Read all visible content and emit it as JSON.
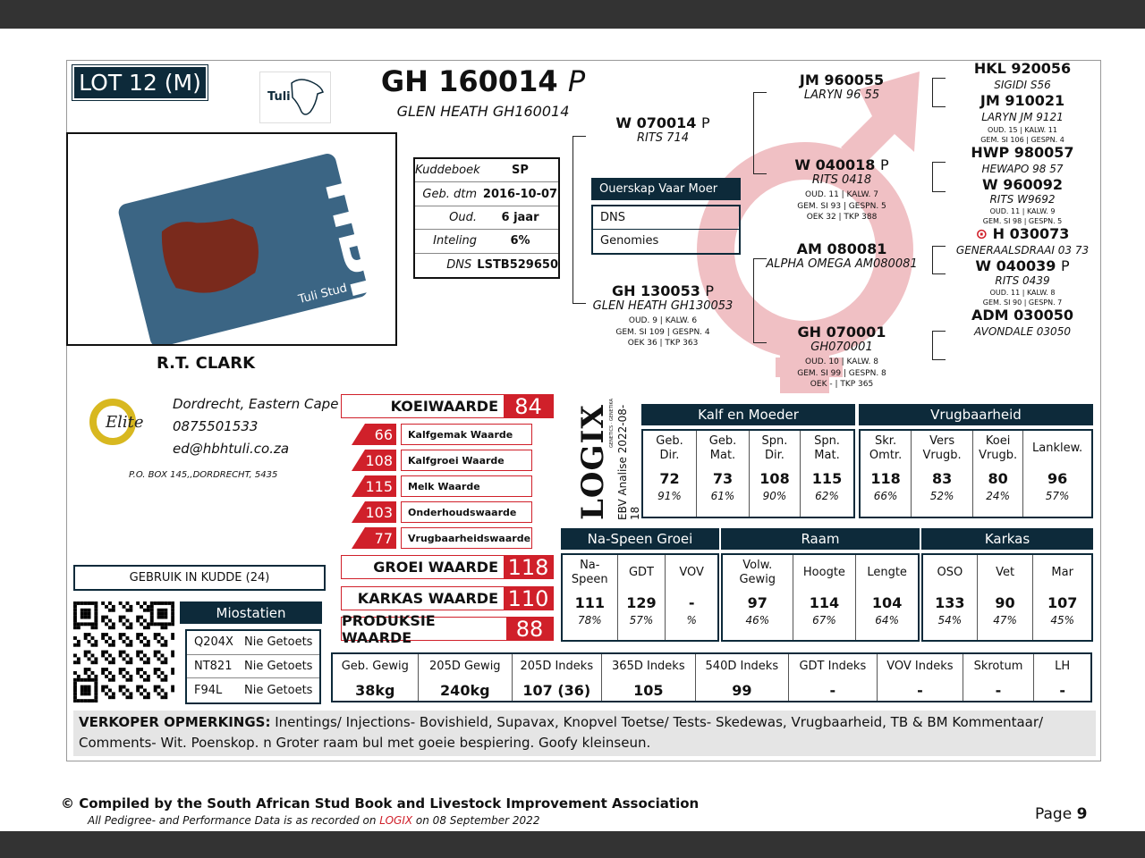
{
  "lot": "LOT 12 (M)",
  "animal": {
    "id": "GH 160014",
    "polled": "P",
    "name": "GLEN HEATH GH160014"
  },
  "logos": {
    "tuli": "Tuli",
    "hbh": "HBH",
    "hbh_sub": "Tuli Stud",
    "elite": "Elite",
    "elite_ring": "GOLD · GOUD"
  },
  "breeder": {
    "name": "R.T. CLARK",
    "location": "Dordrecht, Eastern Cape",
    "phone": "0875501533",
    "email": "ed@hbhtuli.co.za",
    "address": "P.O.  BOX 145,,DORDRECHT,  5435"
  },
  "herdbook": [
    {
      "label": "Kuddeboek",
      "value": "SP"
    },
    {
      "label": "Geb. dtm",
      "value": "2016-10-07"
    },
    {
      "label": "Oud.",
      "value": "6 jaar"
    },
    {
      "label": "Inteling",
      "value": "6%"
    },
    {
      "label": "DNS",
      "value": "LSTB529650"
    }
  ],
  "parentage": {
    "header": "Ouerskap  Vaar  Moer",
    "rows": [
      "DNS",
      "Genomies"
    ]
  },
  "pedigree": {
    "sire": {
      "id": "W 070014",
      "p": "P",
      "name": "RITS 714"
    },
    "dam": {
      "id": "GH 130053",
      "p": "P",
      "name": "GLEN HEATH GH130053",
      "stats": [
        "OUD. 9 | KALW. 6",
        "GEM. SI 109 | GESPN. 4",
        "OEK 36 | TKP 363"
      ]
    },
    "ss": {
      "id": "JM 960055",
      "name": "LARYN 96 55"
    },
    "sd": {
      "id": "W 040018",
      "p": "P",
      "name": "RITS 0418",
      "stats": [
        "OUD. 11 | KALW. 7",
        "GEM. SI 93 | GESPN. 5",
        "OEK 32 | TKP 388"
      ]
    },
    "ds": {
      "id": "AM 080081",
      "name": "ALPHA OMEGA AM080081"
    },
    "dd": {
      "id": "GH 070001",
      "name": "GH070001",
      "stats": [
        "OUD. 10 | KALW. 8",
        "GEM. SI 99 | GESPN. 8",
        "OEK - | TKP 365"
      ]
    },
    "sss": {
      "id": "HKL 920056",
      "name": "SIGIDI S56"
    },
    "ssd": {
      "id": "JM 910021",
      "name": "LARYN JM 9121",
      "stats": [
        "OUD. 15 | KALW. 11",
        "GEM. SI 106 | GESPN. 4"
      ]
    },
    "sds": {
      "id": "HWP 980057",
      "name": "HEWAPO 98 57"
    },
    "sdd": {
      "id": "W 960092",
      "name": "RITS W9692",
      "stats": [
        "OUD. 11 | KALW. 9",
        "GEM. SI 98 | GESPN. 5"
      ]
    },
    "dss": {
      "id": "H 030073",
      "name": "GENERAALSDRAAI 03 73"
    },
    "dsd": {
      "id": "W 040039",
      "p": "P",
      "name": "RITS 0439",
      "stats": [
        "OUD. 11 | KALW. 8",
        "GEM. SI 90 | GESPN. 7"
      ]
    },
    "dds": {
      "id": "ADM 030050",
      "name": "AVONDALE 03050"
    }
  },
  "values": {
    "koei": {
      "label": "KOEIWAARDE",
      "value": "84"
    },
    "sub": [
      {
        "value": "66",
        "label": "Kalfgemak Waarde"
      },
      {
        "value": "108",
        "label": "Kalfgroei Waarde"
      },
      {
        "value": "115",
        "label": "Melk Waarde"
      },
      {
        "value": "103",
        "label": "Onderhoudswaarde"
      },
      {
        "value": "77",
        "label": "Vrugbaarheidswaarde"
      }
    ],
    "groei": {
      "label": "GROEI WAARDE",
      "value": "118"
    },
    "karkas": {
      "label": "KARKAS WAARDE",
      "value": "110"
    },
    "produksie": {
      "label": "PRODUKSIE WAARDE",
      "value": "88"
    }
  },
  "logix": {
    "brand": "LOGIX",
    "tag": "GENETICS · GENETIKA",
    "date": "EBV Analise 2022-08-18"
  },
  "ebv1": {
    "groups": [
      "Kalf en Moeder",
      "Vrugbaarheid"
    ],
    "cols": [
      [
        "Geb.\nDir.",
        "72",
        "91%"
      ],
      [
        "Geb.\nMat.",
        "73",
        "61%"
      ],
      [
        "Spn.\nDir.",
        "108",
        "90%"
      ],
      [
        "Spn.\nMat.",
        "115",
        "62%"
      ],
      [
        "Skr.\nOmtr.",
        "118",
        "66%"
      ],
      [
        "Vers\nVrugb.",
        "83",
        "52%"
      ],
      [
        "Koei\nVrugb.",
        "80",
        "24%"
      ],
      [
        "Lanklew.",
        "96",
        "57%"
      ]
    ]
  },
  "ebv2": {
    "groups": [
      "Na-Speen Groei",
      "Raam",
      "Karkas"
    ],
    "cols": [
      [
        "Na-\nSpeen",
        "111",
        "78%"
      ],
      [
        "GDT",
        "129",
        "57%"
      ],
      [
        "VOV",
        "-",
        "%"
      ],
      [
        "Volw.\nGewig",
        "97",
        "46%"
      ],
      [
        "Hoogte",
        "114",
        "67%"
      ],
      [
        "Lengte",
        "104",
        "64%"
      ],
      [
        "OSO",
        "133",
        "54%"
      ],
      [
        "Vet",
        "90",
        "47%"
      ],
      [
        "Mar",
        "107",
        "45%"
      ]
    ]
  },
  "weights": [
    [
      "Geb. Gewig",
      "38kg"
    ],
    [
      "205D Gewig",
      "240kg"
    ],
    [
      "205D Indeks",
      "107 (36)"
    ],
    [
      "365D Indeks",
      "105"
    ],
    [
      "540D Indeks",
      "99"
    ],
    [
      "GDT Indeks",
      "-"
    ],
    [
      "VOV Indeks",
      "-"
    ],
    [
      "Skrotum",
      "-"
    ],
    [
      "LH",
      "-"
    ]
  ],
  "herd_use": "GEBRUIK IN KUDDE (24)",
  "myostatin": {
    "header": "Miostatien",
    "rows": [
      [
        "Q204X",
        "Nie Getoets"
      ],
      [
        "NT821",
        "Nie Getoets"
      ],
      [
        "F94L",
        "Nie Getoets"
      ]
    ]
  },
  "remarks": {
    "label": "VERKOPER OPMERKINGS:",
    "text": " Inentings/ Injections- Bovishield, Supavax, Knopvel Toetse/ Tests- Skedewas, Vrugbaarheid, TB & BM Kommentaar/ Comments- Wit. Poenskop. n Groter raam bul met goeie bespiering. Goofy kleinseun."
  },
  "footer": {
    "copyright": "© Compiled by the South African Stud Book and Livestock Improvement Association",
    "note_pre": "All Pedigree- and Performance Data is as recorded on ",
    "note_brand": "LOGIX",
    "note_post": " on 08 September 2022",
    "page_label": "Page ",
    "page_num": "9"
  },
  "colors": {
    "navy": "#0d2a3a",
    "red": "#d0202a",
    "pink": "#f0c0c4",
    "card_blue": "#3b6584",
    "cow": "#7a2a1c"
  }
}
